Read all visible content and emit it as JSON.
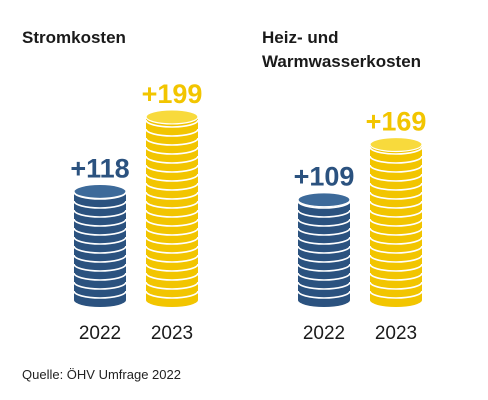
{
  "source": "Quelle: ÖHV Umfrage 2022",
  "colors": {
    "blue": "#2b527f",
    "blue_light": "#3d6a9a",
    "gold": "#f2c500",
    "gold_light": "#f8da3c",
    "year_text": "#1a1a1a"
  },
  "chart_data": [
    {
      "type": "bar",
      "title": "Stromkosten",
      "categories": [
        "2022",
        "2023"
      ],
      "series": [
        {
          "values": [
            118,
            199
          ],
          "value_labels": [
            "+118",
            "+199"
          ]
        }
      ]
    },
    {
      "type": "bar",
      "title": "Heiz- und Warmwasserkosten",
      "categories": [
        "2022",
        "2023"
      ],
      "series": [
        {
          "values": [
            109,
            169
          ],
          "value_labels": [
            "+109",
            "+169"
          ]
        }
      ]
    }
  ]
}
